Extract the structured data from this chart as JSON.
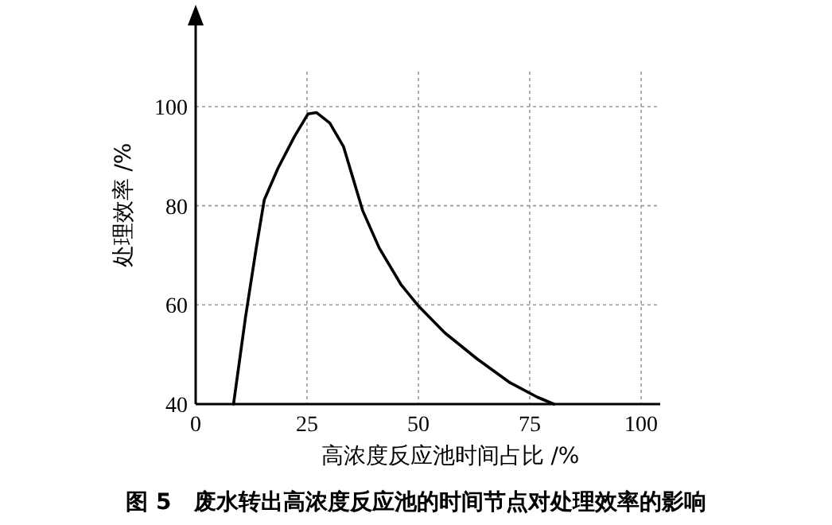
{
  "chart_data": {
    "type": "line",
    "xlabel": "高浓度反应池时间占比 /%",
    "ylabel": "处理效率 /%",
    "annotations": [
      "图 5　废水转出高浓度反应池的时间节点对处理效率的影响"
    ],
    "x": [
      8.5,
      11.2,
      13.6,
      15.4,
      18.5,
      22.2,
      25.2,
      27.1,
      30.1,
      33.2,
      35.0,
      37.5,
      41.2,
      46.1,
      50,
      55.9,
      63.2,
      70.6,
      76.7,
      80.4
    ],
    "series": [
      {
        "color": "#000000",
        "values": [
          40,
          57.6,
          71.5,
          81.2,
          87.6,
          94.0,
          98.5,
          98.8,
          96.7,
          91.9,
          86.5,
          79.0,
          71.5,
          64.1,
          59.8,
          54.4,
          49.1,
          44.3,
          41.4,
          40
        ]
      }
    ],
    "xlim": [
      0,
      100
    ],
    "ylim": [
      40,
      117
    ],
    "xticks": [
      0,
      25,
      50,
      75,
      100
    ],
    "yticks": [
      40,
      60,
      80,
      100
    ],
    "grid": true,
    "marker": "none",
    "line_style": "solid"
  }
}
